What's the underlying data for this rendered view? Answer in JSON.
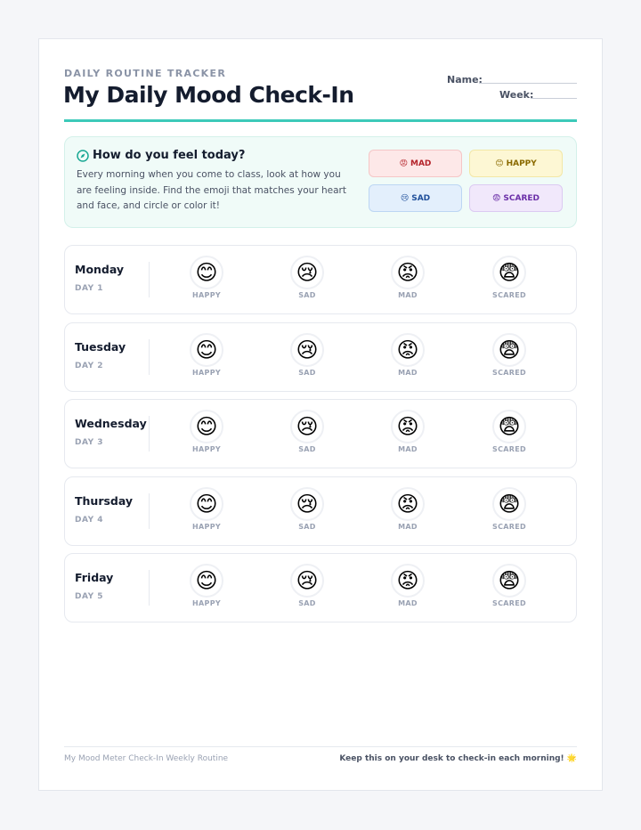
{
  "header": {
    "eyebrow": "DAILY ROUTINE TRACKER",
    "title": "My Daily Mood Check-In",
    "name_label": "Name:",
    "week_label": "Week:"
  },
  "intro": {
    "heading": "How do you feel today?",
    "text": "Every morning when you come to class, look at how you are feeling inside. Find the emoji that matches your heart and face, and circle or color it!"
  },
  "legend": [
    {
      "emoji": "😡",
      "label": "MAD"
    },
    {
      "emoji": "😊",
      "label": "HAPPY"
    },
    {
      "emoji": "😢",
      "label": "SAD"
    },
    {
      "emoji": "😨",
      "label": "SCARED"
    }
  ],
  "moods": [
    {
      "emoji": "😊",
      "label": "HAPPY"
    },
    {
      "emoji": "😢",
      "label": "SAD"
    },
    {
      "emoji": "😡",
      "label": "MAD"
    },
    {
      "emoji": "😨",
      "label": "SCARED"
    }
  ],
  "days": [
    {
      "name": "Monday",
      "number": "DAY 1"
    },
    {
      "name": "Tuesday",
      "number": "DAY 2"
    },
    {
      "name": "Wednesday",
      "number": "DAY 3"
    },
    {
      "name": "Thursday",
      "number": "DAY 4"
    },
    {
      "name": "Friday",
      "number": "DAY 5"
    }
  ],
  "footer": {
    "left": "My Mood Meter Check-In Weekly Routine",
    "right": "Keep this on your desk to check-in each morning! 🌟"
  }
}
